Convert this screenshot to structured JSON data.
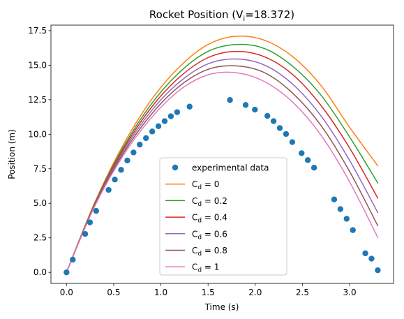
{
  "chart_data": {
    "type": "line",
    "title_prefix": "Rocket Position (V",
    "title_sub": "i",
    "title_suffix": "=18.372)",
    "xlabel": "Time (s)",
    "ylabel": "Position (m)",
    "xlim": [
      -0.165,
      3.465
    ],
    "ylim": [
      -0.8,
      17.9
    ],
    "xticks": [
      0.0,
      0.5,
      1.0,
      1.5,
      2.0,
      2.5,
      3.0
    ],
    "xtick_labels": [
      "0.0",
      "0.5",
      "1.0",
      "1.5",
      "2.0",
      "2.5",
      "3.0"
    ],
    "yticks": [
      0.0,
      2.5,
      5.0,
      7.5,
      10.0,
      12.5,
      15.0,
      17.5
    ],
    "ytick_labels": [
      "0.0",
      "2.5",
      "5.0",
      "7.5",
      "10.0",
      "12.5",
      "15.0",
      "17.5"
    ],
    "grid": false,
    "legend_position": "lower-center",
    "experimental": {
      "name": "experimental data",
      "color": "#1f77b4",
      "points": [
        [
          0.0,
          0.0
        ],
        [
          0.066,
          0.92
        ],
        [
          0.198,
          2.78
        ],
        [
          0.248,
          3.62
        ],
        [
          0.314,
          4.45
        ],
        [
          0.446,
          5.97
        ],
        [
          0.512,
          6.72
        ],
        [
          0.578,
          7.42
        ],
        [
          0.644,
          8.1
        ],
        [
          0.71,
          8.68
        ],
        [
          0.776,
          9.25
        ],
        [
          0.842,
          9.72
        ],
        [
          0.908,
          10.2
        ],
        [
          0.974,
          10.58
        ],
        [
          1.04,
          10.95
        ],
        [
          1.106,
          11.3
        ],
        [
          1.172,
          11.6
        ],
        [
          1.304,
          12.0
        ],
        [
          1.732,
          12.48
        ],
        [
          1.898,
          12.12
        ],
        [
          1.996,
          11.78
        ],
        [
          2.128,
          11.33
        ],
        [
          2.194,
          10.95
        ],
        [
          2.26,
          10.45
        ],
        [
          2.326,
          10.02
        ],
        [
          2.392,
          9.43
        ],
        [
          2.491,
          8.63
        ],
        [
          2.557,
          8.13
        ],
        [
          2.623,
          7.58
        ],
        [
          2.836,
          5.28
        ],
        [
          2.902,
          4.58
        ],
        [
          2.968,
          3.88
        ],
        [
          3.034,
          3.06
        ],
        [
          3.166,
          1.38
        ],
        [
          3.232,
          0.99
        ],
        [
          3.298,
          0.15
        ]
      ]
    },
    "series": [
      {
        "name": "Cd0",
        "label_main": "C",
        "label_sub": "d",
        "label_value": " = 0",
        "color": "#ff7f0e",
        "x": [
          0,
          0.3,
          0.6,
          0.9,
          1.2,
          1.5,
          1.8,
          2.1,
          2.4,
          2.7,
          3.0,
          3.3
        ],
        "y": [
          0,
          5.07,
          9.22,
          12.5,
          14.9,
          16.5,
          17.1,
          16.8,
          15.6,
          13.5,
          10.5,
          7.7
        ]
      },
      {
        "name": "Cd0.2",
        "label_main": "C",
        "label_sub": "d",
        "label_value": " = 0.2",
        "color": "#2ca02c",
        "x": [
          0,
          0.3,
          0.6,
          0.9,
          1.2,
          1.5,
          1.8,
          2.1,
          2.4,
          2.7,
          3.0,
          3.3
        ],
        "y": [
          0,
          5.0,
          9.05,
          12.2,
          14.5,
          16.0,
          16.5,
          16.2,
          14.9,
          12.8,
          9.8,
          6.45
        ]
      },
      {
        "name": "Cd0.4",
        "label_main": "C",
        "label_sub": "d",
        "label_value": " = 0.4",
        "color": "#d62728",
        "x": [
          0,
          0.3,
          0.6,
          0.9,
          1.2,
          1.5,
          1.8,
          2.1,
          2.4,
          2.7,
          3.0,
          3.3
        ],
        "y": [
          0,
          4.95,
          8.9,
          11.95,
          14.15,
          15.55,
          16.0,
          15.6,
          14.3,
          12.05,
          9.0,
          5.35
        ]
      },
      {
        "name": "Cd0.6",
        "label_main": "C",
        "label_sub": "d",
        "label_value": " = 0.6",
        "color": "#9467bd",
        "x": [
          0,
          0.3,
          0.6,
          0.9,
          1.2,
          1.5,
          1.8,
          2.1,
          2.4,
          2.7,
          3.0,
          3.3
        ],
        "y": [
          0,
          4.9,
          8.75,
          11.7,
          13.8,
          15.1,
          15.45,
          15.0,
          13.6,
          11.3,
          8.1,
          4.3
        ]
      },
      {
        "name": "Cd0.8",
        "label_main": "C",
        "label_sub": "d",
        "label_value": " = 0.8",
        "color": "#8c564b",
        "x": [
          0,
          0.3,
          0.6,
          0.9,
          1.2,
          1.5,
          1.8,
          2.1,
          2.4,
          2.7,
          3.0,
          3.3
        ],
        "y": [
          0,
          4.85,
          8.6,
          11.45,
          13.5,
          14.7,
          14.95,
          14.45,
          12.95,
          10.6,
          7.3,
          3.35
        ]
      },
      {
        "name": "Cd1",
        "label_main": "C",
        "label_sub": "d",
        "label_value": " = 1",
        "color": "#e377c2",
        "x": [
          0,
          0.3,
          0.6,
          0.9,
          1.2,
          1.5,
          1.8,
          2.1,
          2.4,
          2.7,
          3.0,
          3.3
        ],
        "y": [
          0,
          4.8,
          8.45,
          11.2,
          13.2,
          14.3,
          14.45,
          13.8,
          12.3,
          9.9,
          6.55,
          2.5
        ]
      }
    ]
  }
}
